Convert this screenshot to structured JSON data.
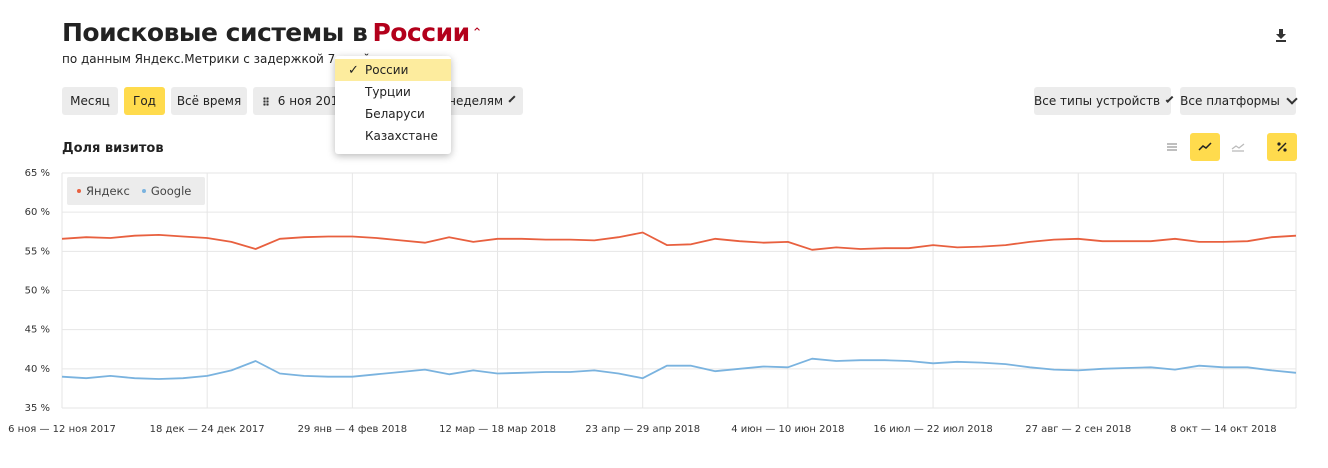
{
  "header": {
    "title": "Поисковые системы в",
    "country": "России",
    "subtitle": "по данным Яндекс.Метрики с задержкой 7 дней",
    "download_icon": "download-icon"
  },
  "toolbar": {
    "month": "Месяц",
    "year": "Год",
    "all_time": "Всё время",
    "date_range": "6 ноя 2017",
    "grouping": "по неделям",
    "device_types": "Все типы устройств",
    "platforms": "Все платформы",
    "active_period": "Год"
  },
  "country_dropdown": {
    "items": [
      "России",
      "Турции",
      "Беларуси",
      "Казахстане"
    ],
    "selected": "России",
    "check": "✓"
  },
  "chart_section": {
    "label": "Доля визитов",
    "view_buttons": [
      "stacked-area-icon",
      "line-chart-icon",
      "area-chart-icon",
      "percent-icon"
    ],
    "active_views": [
      "line-chart-icon",
      "percent-icon"
    ]
  },
  "colors": {
    "yandex": "#e8603f",
    "google": "#7ab3df",
    "accent": "#ffdb4d",
    "title_red": "#b3001b"
  },
  "chart_data": {
    "type": "line",
    "ylabel": "",
    "ylim": [
      35,
      65
    ],
    "yticks": [
      "35 %",
      "40 %",
      "45 %",
      "50 %",
      "55 %",
      "60 %",
      "65 %"
    ],
    "xticks": [
      "6 ноя — 12 ноя 2017",
      "18 дек — 24 дек 2017",
      "29 янв — 4 фев 2018",
      "12 мар — 18 мар 2018",
      "23 апр — 29 апр 2018",
      "4 июн — 10 июн 2018",
      "16 июл — 22 июл 2018",
      "27 авг — 2 сен 2018",
      "8 окт — 14 окт 2018"
    ],
    "legend_position": "top-left",
    "series": [
      {
        "name": "Яндекс",
        "values": [
          56.6,
          56.8,
          56.7,
          57.0,
          57.1,
          56.9,
          56.7,
          56.2,
          55.3,
          56.6,
          56.8,
          56.9,
          56.9,
          56.7,
          56.4,
          56.1,
          56.8,
          56.2,
          56.6,
          56.6,
          56.5,
          56.5,
          56.4,
          56.8,
          57.4,
          55.8,
          55.9,
          56.6,
          56.3,
          56.1,
          56.2,
          55.2,
          55.5,
          55.3,
          55.4,
          55.4,
          55.8,
          55.5,
          55.6,
          55.8,
          56.2,
          56.5,
          56.6,
          56.3,
          56.3,
          56.3,
          56.6,
          56.2,
          56.2,
          56.3,
          56.8,
          57.0
        ]
      },
      {
        "name": "Google",
        "values": [
          39.0,
          38.8,
          39.1,
          38.8,
          38.7,
          38.8,
          39.1,
          39.8,
          41.0,
          39.4,
          39.1,
          39.0,
          39.0,
          39.3,
          39.6,
          39.9,
          39.3,
          39.8,
          39.4,
          39.5,
          39.6,
          39.6,
          39.8,
          39.4,
          38.8,
          40.4,
          40.4,
          39.7,
          40.0,
          40.3,
          40.2,
          41.3,
          41.0,
          41.1,
          41.1,
          41.0,
          40.7,
          40.9,
          40.8,
          40.6,
          40.2,
          39.9,
          39.8,
          40.0,
          40.1,
          40.2,
          39.9,
          40.4,
          40.2,
          40.2,
          39.8,
          39.5
        ]
      }
    ]
  }
}
